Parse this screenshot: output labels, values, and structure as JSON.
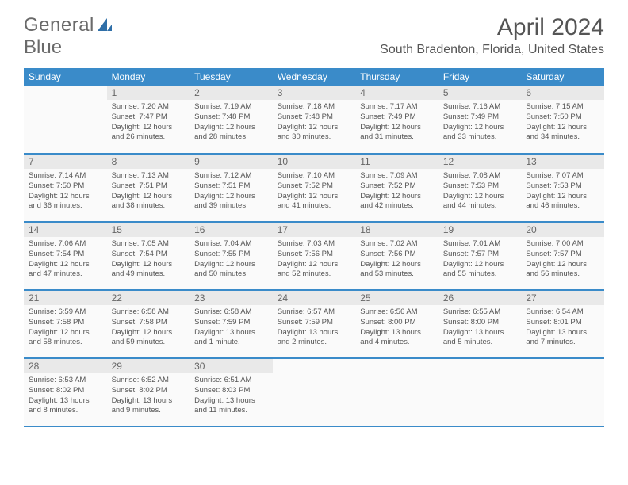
{
  "logo": {
    "word1": "General",
    "word2": "Blue"
  },
  "title": "April 2024",
  "location": "South Bradenton, Florida, United States",
  "colors": {
    "header_bg": "#3a8bc9",
    "header_text": "#ffffff",
    "daynum_bg": "#e9e9e9",
    "cell_bg": "#fafafa",
    "text": "#555555",
    "rule": "#3a8bc9"
  },
  "weekdays": [
    "Sunday",
    "Monday",
    "Tuesday",
    "Wednesday",
    "Thursday",
    "Friday",
    "Saturday"
  ],
  "start_offset": 1,
  "days": [
    {
      "n": 1,
      "sunrise": "7:20 AM",
      "sunset": "7:47 PM",
      "daylight": "12 hours and 26 minutes."
    },
    {
      "n": 2,
      "sunrise": "7:19 AM",
      "sunset": "7:48 PM",
      "daylight": "12 hours and 28 minutes."
    },
    {
      "n": 3,
      "sunrise": "7:18 AM",
      "sunset": "7:48 PM",
      "daylight": "12 hours and 30 minutes."
    },
    {
      "n": 4,
      "sunrise": "7:17 AM",
      "sunset": "7:49 PM",
      "daylight": "12 hours and 31 minutes."
    },
    {
      "n": 5,
      "sunrise": "7:16 AM",
      "sunset": "7:49 PM",
      "daylight": "12 hours and 33 minutes."
    },
    {
      "n": 6,
      "sunrise": "7:15 AM",
      "sunset": "7:50 PM",
      "daylight": "12 hours and 34 minutes."
    },
    {
      "n": 7,
      "sunrise": "7:14 AM",
      "sunset": "7:50 PM",
      "daylight": "12 hours and 36 minutes."
    },
    {
      "n": 8,
      "sunrise": "7:13 AM",
      "sunset": "7:51 PM",
      "daylight": "12 hours and 38 minutes."
    },
    {
      "n": 9,
      "sunrise": "7:12 AM",
      "sunset": "7:51 PM",
      "daylight": "12 hours and 39 minutes."
    },
    {
      "n": 10,
      "sunrise": "7:10 AM",
      "sunset": "7:52 PM",
      "daylight": "12 hours and 41 minutes."
    },
    {
      "n": 11,
      "sunrise": "7:09 AM",
      "sunset": "7:52 PM",
      "daylight": "12 hours and 42 minutes."
    },
    {
      "n": 12,
      "sunrise": "7:08 AM",
      "sunset": "7:53 PM",
      "daylight": "12 hours and 44 minutes."
    },
    {
      "n": 13,
      "sunrise": "7:07 AM",
      "sunset": "7:53 PM",
      "daylight": "12 hours and 46 minutes."
    },
    {
      "n": 14,
      "sunrise": "7:06 AM",
      "sunset": "7:54 PM",
      "daylight": "12 hours and 47 minutes."
    },
    {
      "n": 15,
      "sunrise": "7:05 AM",
      "sunset": "7:54 PM",
      "daylight": "12 hours and 49 minutes."
    },
    {
      "n": 16,
      "sunrise": "7:04 AM",
      "sunset": "7:55 PM",
      "daylight": "12 hours and 50 minutes."
    },
    {
      "n": 17,
      "sunrise": "7:03 AM",
      "sunset": "7:56 PM",
      "daylight": "12 hours and 52 minutes."
    },
    {
      "n": 18,
      "sunrise": "7:02 AM",
      "sunset": "7:56 PM",
      "daylight": "12 hours and 53 minutes."
    },
    {
      "n": 19,
      "sunrise": "7:01 AM",
      "sunset": "7:57 PM",
      "daylight": "12 hours and 55 minutes."
    },
    {
      "n": 20,
      "sunrise": "7:00 AM",
      "sunset": "7:57 PM",
      "daylight": "12 hours and 56 minutes."
    },
    {
      "n": 21,
      "sunrise": "6:59 AM",
      "sunset": "7:58 PM",
      "daylight": "12 hours and 58 minutes."
    },
    {
      "n": 22,
      "sunrise": "6:58 AM",
      "sunset": "7:58 PM",
      "daylight": "12 hours and 59 minutes."
    },
    {
      "n": 23,
      "sunrise": "6:58 AM",
      "sunset": "7:59 PM",
      "daylight": "13 hours and 1 minute."
    },
    {
      "n": 24,
      "sunrise": "6:57 AM",
      "sunset": "7:59 PM",
      "daylight": "13 hours and 2 minutes."
    },
    {
      "n": 25,
      "sunrise": "6:56 AM",
      "sunset": "8:00 PM",
      "daylight": "13 hours and 4 minutes."
    },
    {
      "n": 26,
      "sunrise": "6:55 AM",
      "sunset": "8:00 PM",
      "daylight": "13 hours and 5 minutes."
    },
    {
      "n": 27,
      "sunrise": "6:54 AM",
      "sunset": "8:01 PM",
      "daylight": "13 hours and 7 minutes."
    },
    {
      "n": 28,
      "sunrise": "6:53 AM",
      "sunset": "8:02 PM",
      "daylight": "13 hours and 8 minutes."
    },
    {
      "n": 29,
      "sunrise": "6:52 AM",
      "sunset": "8:02 PM",
      "daylight": "13 hours and 9 minutes."
    },
    {
      "n": 30,
      "sunrise": "6:51 AM",
      "sunset": "8:03 PM",
      "daylight": "13 hours and 11 minutes."
    }
  ],
  "labels": {
    "sunrise": "Sunrise:",
    "sunset": "Sunset:",
    "daylight": "Daylight:"
  }
}
